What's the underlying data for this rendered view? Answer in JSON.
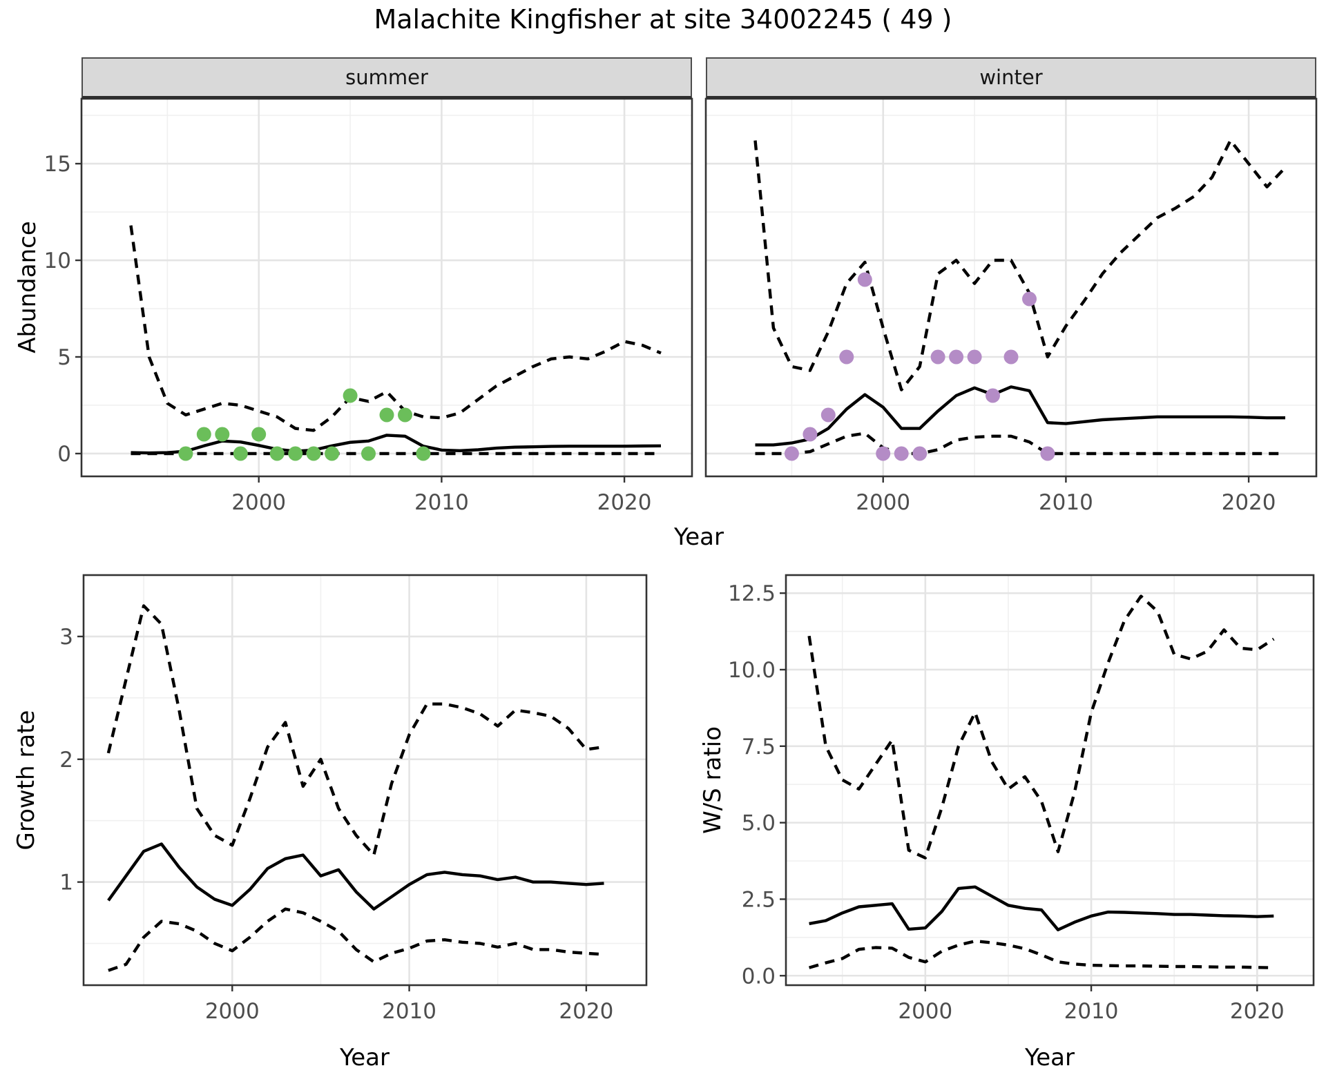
{
  "chart_data": {
    "type": "line",
    "title": "Malachite Kingfisher at site 34002245 ( 49 )",
    "colors": {
      "summer_points": "#6BBE5A",
      "winter_points": "#B48CC6",
      "lines": "#000000",
      "grid_major": "#E4E4E4",
      "grid_minor": "#F0F0F0",
      "strip_background": "#D9D9D9",
      "axis_text": "#4D4D4D",
      "panel_border": "#333333"
    },
    "panels": [
      {
        "id": "abundance-summer",
        "facet": "summer",
        "ylabel": "Abundance",
        "xlabel": "Year",
        "xlim": [
          1990.3,
          2023.7
        ],
        "ylim": [
          -1.18,
          18.36
        ],
        "xticks": [
          2000,
          2010,
          2020
        ],
        "xtick_labels": [
          "2000",
          "2010",
          "2020"
        ],
        "xminor": [
          1995,
          2005,
          2015
        ],
        "yticks": [
          0,
          5,
          10,
          15
        ],
        "ytick_labels": [
          "0",
          "5",
          "10",
          "15"
        ],
        "yminor": [
          2.5,
          7.5,
          12.5,
          17.5
        ],
        "show_y_axis": true,
        "series": [
          {
            "name": "upper-95ci",
            "style": "dashed",
            "start_year": 1993,
            "values": [
              11.8,
              5.0,
              2.6,
              2.0,
              2.3,
              2.6,
              2.5,
              2.2,
              1.9,
              1.3,
              1.2,
              1.9,
              2.9,
              2.7,
              3.2,
              2.2,
              1.9,
              1.85,
              2.1,
              2.8,
              3.5,
              4.0,
              4.5,
              4.9,
              5.0,
              4.9,
              5.3,
              5.8,
              5.6,
              5.2
            ]
          },
          {
            "name": "median",
            "style": "solid",
            "start_year": 1993,
            "values": [
              0.05,
              0.03,
              0.05,
              0.12,
              0.4,
              0.65,
              0.6,
              0.42,
              0.22,
              0.12,
              0.18,
              0.4,
              0.58,
              0.65,
              0.95,
              0.9,
              0.38,
              0.18,
              0.15,
              0.2,
              0.28,
              0.33,
              0.35,
              0.37,
              0.38,
              0.38,
              0.38,
              0.38,
              0.39,
              0.4
            ]
          },
          {
            "name": "lower-95ci",
            "style": "dashed",
            "start_year": 1993,
            "values": [
              0,
              0,
              0,
              0,
              0,
              0,
              0,
              0,
              0,
              0,
              0,
              0,
              0,
              0,
              0,
              0,
              0,
              0,
              0,
              0,
              0,
              0,
              0,
              0,
              0,
              0,
              0,
              0,
              0,
              0
            ]
          }
        ],
        "points": {
          "name": "observed-abundance",
          "color": "#6BBE5A",
          "start_year": 1996,
          "values": [
            0,
            1,
            1,
            0,
            1,
            0,
            0,
            0,
            0,
            3,
            0,
            2,
            2,
            0
          ]
        }
      },
      {
        "id": "abundance-winter",
        "facet": "winter",
        "ylabel": "Abundance",
        "xlabel": "Year",
        "xlim": [
          1990.3,
          2023.7
        ],
        "ylim": [
          -1.18,
          18.36
        ],
        "xticks": [
          2000,
          2010,
          2020
        ],
        "xtick_labels": [
          "2000",
          "2010",
          "2020"
        ],
        "xminor": [
          1995,
          2005,
          2015
        ],
        "yticks": [
          0,
          5,
          10,
          15
        ],
        "ytick_labels": [
          "0",
          "5",
          "10",
          "15"
        ],
        "yminor": [
          2.5,
          7.5,
          12.5,
          17.5
        ],
        "show_y_axis": false,
        "series": [
          {
            "name": "upper-95ci",
            "style": "dashed",
            "start_year": 1993,
            "values": [
              16.2,
              6.5,
              4.5,
              4.3,
              6.3,
              8.8,
              9.9,
              6.5,
              3.3,
              4.5,
              9.3,
              10.0,
              8.8,
              10.0,
              10.0,
              8.3,
              5.0,
              6.6,
              7.9,
              9.3,
              10.4,
              11.3,
              12.2,
              12.7,
              13.3,
              14.3,
              16.2,
              15.0,
              13.8,
              14.8
            ]
          },
          {
            "name": "median",
            "style": "solid",
            "start_year": 1993,
            "values": [
              0.45,
              0.45,
              0.55,
              0.75,
              1.3,
              2.3,
              3.05,
              2.4,
              1.3,
              1.3,
              2.2,
              3.0,
              3.4,
              3.05,
              3.45,
              3.25,
              1.6,
              1.55,
              1.65,
              1.75,
              1.8,
              1.85,
              1.9,
              1.9,
              1.9,
              1.9,
              1.9,
              1.88,
              1.85,
              1.85
            ]
          },
          {
            "name": "lower-95ci",
            "style": "dashed",
            "start_year": 1993,
            "values": [
              0,
              0,
              0,
              0.1,
              0.5,
              0.9,
              1.05,
              0.3,
              0,
              0,
              0.2,
              0.7,
              0.85,
              0.9,
              0.9,
              0.6,
              0,
              0,
              0,
              0,
              0,
              0,
              0,
              0,
              0,
              0,
              0,
              0,
              0,
              0
            ]
          }
        ],
        "points": {
          "name": "observed-abundance",
          "color": "#B48CC6",
          "start_year": 1995,
          "values": [
            0,
            1,
            2,
            5,
            9,
            0,
            0,
            0,
            5,
            5,
            5,
            3,
            5,
            8,
            0
          ]
        }
      },
      {
        "id": "growth-rate",
        "facet": null,
        "ylabel": "Growth rate",
        "xlabel": "Year",
        "xlim": [
          1991.6,
          2023.4
        ],
        "ylim": [
          0.16,
          3.5
        ],
        "xticks": [
          2000,
          2010,
          2020
        ],
        "xtick_labels": [
          "2000",
          "2010",
          "2020"
        ],
        "xminor": [
          1995,
          2005,
          2015
        ],
        "yticks": [
          1,
          2,
          3
        ],
        "ytick_labels": [
          "1",
          "2",
          "3"
        ],
        "yminor": [
          0.5,
          1.5,
          2.5
        ],
        "show_y_axis": true,
        "series": [
          {
            "name": "upper-95ci",
            "style": "dashed",
            "start_year": 1993,
            "values": [
              2.05,
              2.65,
              3.25,
              3.1,
              2.4,
              1.6,
              1.38,
              1.3,
              1.68,
              2.1,
              2.3,
              1.78,
              2.0,
              1.6,
              1.38,
              1.22,
              1.8,
              2.2,
              2.45,
              2.45,
              2.42,
              2.37,
              2.27,
              2.4,
              2.38,
              2.35,
              2.25,
              2.08,
              2.1
            ]
          },
          {
            "name": "median",
            "style": "solid",
            "start_year": 1993,
            "values": [
              0.85,
              1.05,
              1.25,
              1.31,
              1.12,
              0.96,
              0.86,
              0.81,
              0.94,
              1.11,
              1.19,
              1.22,
              1.05,
              1.1,
              0.92,
              0.78,
              0.88,
              0.98,
              1.06,
              1.08,
              1.06,
              1.05,
              1.02,
              1.04,
              1.0,
              1.0,
              0.99,
              0.98,
              0.99
            ]
          },
          {
            "name": "lower-95ci",
            "style": "dashed",
            "start_year": 1993,
            "values": [
              0.28,
              0.33,
              0.55,
              0.68,
              0.66,
              0.6,
              0.5,
              0.44,
              0.55,
              0.68,
              0.78,
              0.75,
              0.68,
              0.6,
              0.45,
              0.35,
              0.42,
              0.46,
              0.52,
              0.53,
              0.51,
              0.5,
              0.47,
              0.5,
              0.45,
              0.45,
              0.43,
              0.42,
              0.41
            ]
          }
        ],
        "points": null
      },
      {
        "id": "ws-ratio",
        "facet": null,
        "ylabel": "W/S ratio",
        "xlabel": "Year",
        "xlim": [
          1991.6,
          2023.4
        ],
        "ylim": [
          -0.31,
          13.09
        ],
        "xticks": [
          2000,
          2010,
          2020
        ],
        "xtick_labels": [
          "2000",
          "2010",
          "2020"
        ],
        "xminor": [
          1995,
          2005,
          2015
        ],
        "yticks": [
          0,
          2.5,
          5,
          7.5,
          10,
          12.5
        ],
        "ytick_labels": [
          "0.0",
          "2.5",
          "5.0",
          "7.5",
          "10.0",
          "12.5"
        ],
        "yminor": [
          1.25,
          3.75,
          6.25,
          8.75,
          11.25
        ],
        "show_y_axis": true,
        "series": [
          {
            "name": "upper-95ci",
            "style": "dashed",
            "start_year": 1993,
            "values": [
              11.1,
              7.5,
              6.4,
              6.1,
              6.9,
              7.7,
              4.1,
              3.85,
              5.5,
              7.5,
              8.6,
              7.0,
              6.1,
              6.5,
              5.7,
              4.05,
              6.0,
              8.6,
              10.2,
              11.6,
              12.4,
              11.9,
              10.5,
              10.35,
              10.6,
              11.3,
              10.7,
              10.65,
              11.0
            ]
          },
          {
            "name": "median",
            "style": "solid",
            "start_year": 1993,
            "values": [
              1.7,
              1.8,
              2.05,
              2.25,
              2.3,
              2.35,
              1.52,
              1.56,
              2.1,
              2.85,
              2.9,
              2.6,
              2.3,
              2.2,
              2.15,
              1.5,
              1.75,
              1.95,
              2.08,
              2.07,
              2.05,
              2.03,
              2.0,
              2.0,
              1.98,
              1.96,
              1.95,
              1.93,
              1.95
            ]
          },
          {
            "name": "lower-95ci",
            "style": "dashed",
            "start_year": 1993,
            "values": [
              0.26,
              0.42,
              0.56,
              0.86,
              0.92,
              0.9,
              0.6,
              0.45,
              0.8,
              1.0,
              1.13,
              1.08,
              1.0,
              0.88,
              0.68,
              0.45,
              0.38,
              0.34,
              0.33,
              0.32,
              0.32,
              0.31,
              0.3,
              0.3,
              0.29,
              0.28,
              0.28,
              0.27,
              0.26
            ]
          }
        ],
        "points": null
      }
    ]
  }
}
